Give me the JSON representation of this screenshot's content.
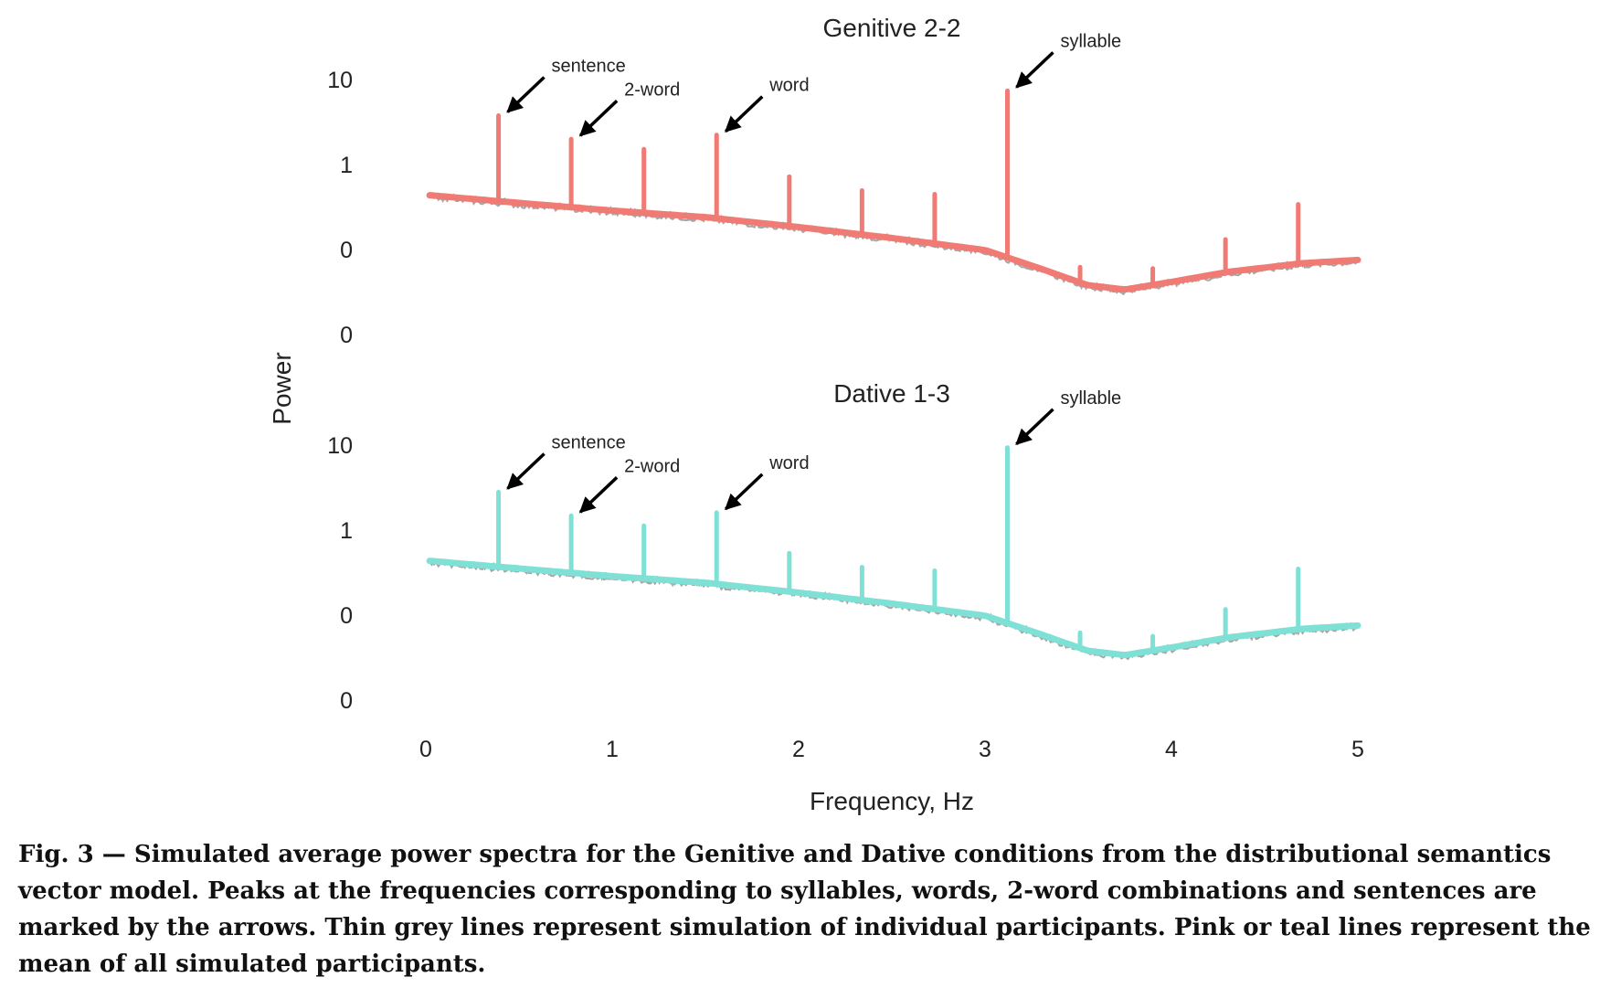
{
  "chart_data": {
    "type": "line",
    "shared_x_axis": {
      "label": "Frequency, Hz",
      "range": [
        0,
        5
      ],
      "ticks": [
        0,
        1,
        2,
        3,
        4,
        5
      ]
    },
    "shared_y_axis": {
      "label": "Power",
      "tick_labels": [
        "10",
        "1",
        "0",
        "0"
      ],
      "scale": "log"
    },
    "grid": false,
    "background_trace_color": "#a6a6a6",
    "panels": [
      {
        "title": "Genitive 2-2",
        "color": "#f07a74",
        "baseline": {
          "x": [
            0.02,
            0.5,
            1.0,
            1.5,
            2.0,
            2.5,
            3.0,
            3.3,
            3.55,
            3.75,
            4.0,
            4.3,
            4.7,
            5.0
          ],
          "y": [
            0.62,
            0.55,
            0.48,
            0.42,
            0.33,
            0.23,
            0.12,
            -0.05,
            -0.2,
            -0.24,
            -0.17,
            -0.08,
            0.0,
            0.03
          ]
        },
        "peaks": [
          {
            "x": 0.39,
            "height": 0.78
          },
          {
            "x": 0.78,
            "height": 0.62
          },
          {
            "x": 1.17,
            "height": 0.58
          },
          {
            "x": 1.56,
            "height": 0.76
          },
          {
            "x": 1.95,
            "height": 0.45
          },
          {
            "x": 2.34,
            "height": 0.4
          },
          {
            "x": 2.73,
            "height": 0.45
          },
          {
            "x": 3.12,
            "height": 1.52
          },
          {
            "x": 3.51,
            "height": 0.14
          },
          {
            "x": 3.9,
            "height": 0.15
          },
          {
            "x": 4.29,
            "height": 0.3
          },
          {
            "x": 4.68,
            "height": 0.54
          }
        ],
        "annotations": [
          {
            "label": "sentence",
            "x": 0.39
          },
          {
            "label": "2-word",
            "x": 0.78
          },
          {
            "label": "word",
            "x": 1.56
          },
          {
            "label": "syllable",
            "x": 3.12
          }
        ]
      },
      {
        "title": "Dative 1-3",
        "color": "#7fe0d5",
        "baseline": {
          "x": [
            0.02,
            0.5,
            1.0,
            1.5,
            2.0,
            2.5,
            3.0,
            3.3,
            3.55,
            3.75,
            4.0,
            4.3,
            4.7,
            5.0
          ],
          "y": [
            0.62,
            0.55,
            0.48,
            0.42,
            0.33,
            0.23,
            0.12,
            -0.05,
            -0.2,
            -0.24,
            -0.17,
            -0.08,
            0.0,
            0.03
          ]
        },
        "peaks": [
          {
            "x": 0.39,
            "height": 0.68
          },
          {
            "x": 0.78,
            "height": 0.52
          },
          {
            "x": 1.17,
            "height": 0.48
          },
          {
            "x": 1.56,
            "height": 0.65
          },
          {
            "x": 1.95,
            "height": 0.35
          },
          {
            "x": 2.34,
            "height": 0.3
          },
          {
            "x": 2.73,
            "height": 0.35
          },
          {
            "x": 3.12,
            "height": 1.6
          },
          {
            "x": 3.51,
            "height": 0.14
          },
          {
            "x": 3.9,
            "height": 0.13
          },
          {
            "x": 4.29,
            "height": 0.26
          },
          {
            "x": 4.68,
            "height": 0.55
          }
        ],
        "annotations": [
          {
            "label": "sentence",
            "x": 0.39
          },
          {
            "label": "2-word",
            "x": 0.78
          },
          {
            "label": "word",
            "x": 1.56
          },
          {
            "label": "syllable",
            "x": 3.12
          }
        ]
      }
    ]
  },
  "caption": "Fig. 3 — Simulated average power spectra for the Genitive and Dative conditions from the distributional semantics vector model. Peaks at the frequencies corresponding to syllables, words, 2-word combinations and sentences are marked by the arrows. Thin grey lines represent simulation of individual participants. Pink or teal lines represent the mean of all simulated participants."
}
